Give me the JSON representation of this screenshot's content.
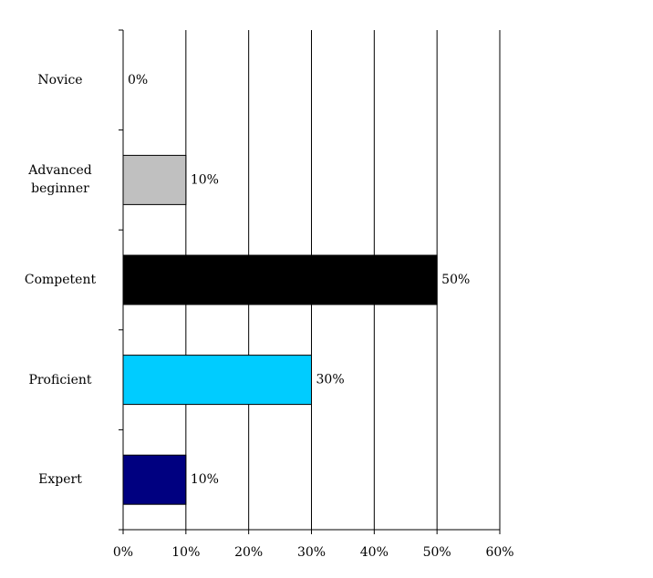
{
  "chart_data": {
    "type": "barh",
    "categories": [
      "Novice",
      "Advanced beginner",
      "Competent",
      "Proficient",
      "Expert"
    ],
    "values": [
      0,
      10,
      50,
      30,
      10
    ],
    "value_labels": [
      "0%",
      "10%",
      "50%",
      "30%",
      "10%"
    ],
    "colors": [
      "#ffffff",
      "#c0c0c0",
      "#000000",
      "#00ccff",
      "#000080"
    ],
    "xlim": [
      0,
      60
    ],
    "xticks": [
      {
        "value": 0,
        "label": "0%"
      },
      {
        "value": 10,
        "label": "10%"
      },
      {
        "value": 20,
        "label": "20%"
      },
      {
        "value": 30,
        "label": "30%"
      },
      {
        "value": 40,
        "label": "40%"
      },
      {
        "value": 50,
        "label": "50%"
      },
      {
        "value": 60,
        "label": "60%"
      }
    ],
    "grid": true
  }
}
